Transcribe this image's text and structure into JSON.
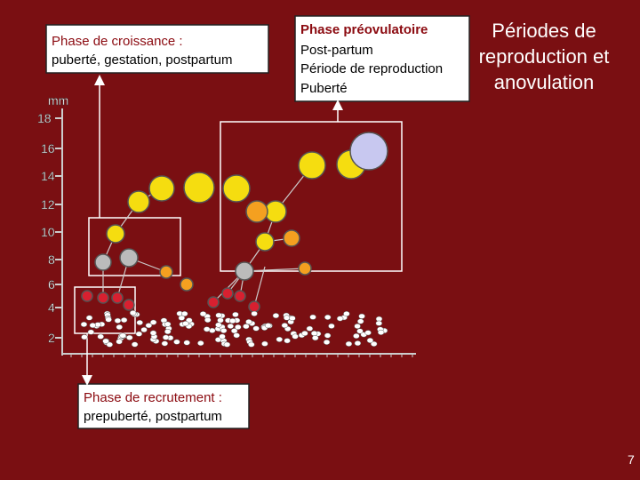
{
  "growth_box": {
    "title": "Phase de croissance",
    "separator": " :",
    "text": "puberté, gestation, postpartum"
  },
  "axis": {
    "unit": "mm",
    "ticks": [
      "18",
      "16",
      "14",
      "12",
      "10",
      "8",
      "6",
      "4",
      "2"
    ]
  },
  "preovulatory_box": {
    "title": "Phase préovulatoire",
    "lines": [
      "Post-partum",
      "Période de reproduction",
      "Puberté"
    ]
  },
  "heading": {
    "lines": [
      "Périodes de",
      "reproduction et",
      "anovulation"
    ]
  },
  "recruitment_box": {
    "title": "Phase de recrutement",
    "separator": " :",
    "text": "prepuberté, postpartum"
  },
  "page_number": "7"
}
